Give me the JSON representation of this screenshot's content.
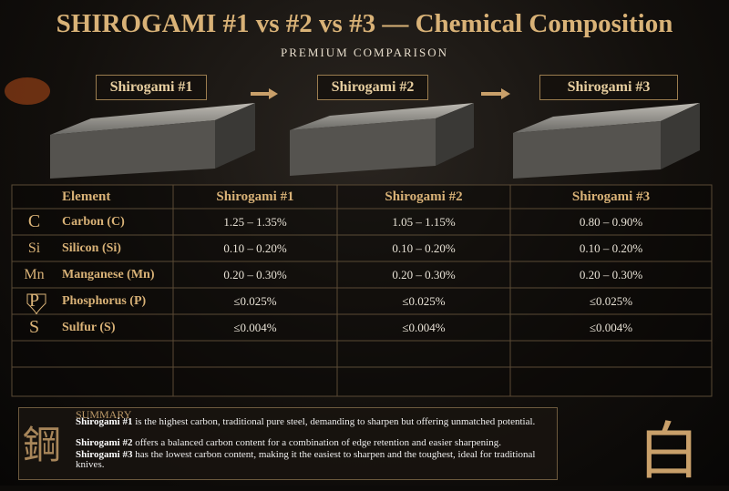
{
  "header": {
    "title": "SHIROGAMI #1 vs #2 vs #3 — Chemical Composition",
    "subtitle": "PREMIUM COMPARISON"
  },
  "steels": [
    "Shirogami #1",
    "Shirogami #2",
    "Shirogami #3"
  ],
  "table": {
    "columns": [
      "Element",
      "Shirogami #1",
      "Shirogami #2",
      "Shirogami #3"
    ],
    "rows": [
      {
        "symbol": "C",
        "element": "Carbon (C)",
        "values": [
          "1.25 – 1.35%",
          "1.05 – 1.15%",
          "0.80 – 0.90%"
        ]
      },
      {
        "symbol": "Si",
        "element": "Silicon (Si)",
        "values": [
          "0.10 – 0.20%",
          "0.10 – 0.20%",
          "0.10 – 0.20%"
        ]
      },
      {
        "symbol": "Mn",
        "element": "Manganese (Mn)",
        "values": [
          "0.20 – 0.30%",
          "0.20 – 0.30%",
          "0.20 – 0.30%"
        ]
      },
      {
        "symbol": "P",
        "element": "Phosphorus (P)",
        "values": [
          "≤0.025%",
          "≤0.025%",
          "≤0.025%"
        ]
      },
      {
        "symbol": "S",
        "element": "Sulfur (S)",
        "values": [
          "≤0.004%",
          "≤0.004%",
          "≤0.004%"
        ]
      }
    ]
  },
  "summary": {
    "title": "SUMMARY",
    "items": [
      {
        "name": "Shirogami #1",
        "text": "is the highest carbon, traditional pure steel, demanding to sharpen but offering unmatched potential."
      },
      {
        "name": "Shirogami #2",
        "text": "offers a balanced carbon content for a combination of edge retention and easier sharpening."
      },
      {
        "name": "Shirogami #3",
        "text": "has the lowest carbon content, making it the easiest to sharpen and the toughest, ideal for traditional knives."
      }
    ]
  },
  "kanji": {
    "left": "鋼",
    "right": "白"
  }
}
